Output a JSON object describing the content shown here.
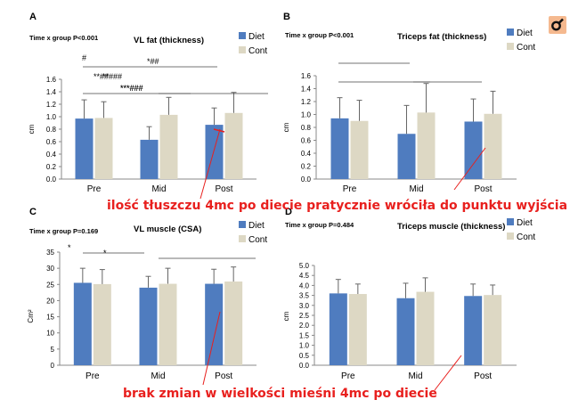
{
  "colors": {
    "diet": "#4f7cbf",
    "cont": "#ddd8c4",
    "axis": "#888888",
    "annotation": "#e8201e",
    "bracket": "#444444"
  },
  "annotations": {
    "top": "ilość tłuszczu 4mc po diecie pratycznie wróciła do punktu wyjścia",
    "bottom": "brak zmian w wielkości mieśni 4mc po diecie"
  },
  "logo_icon": "magnifier-icon",
  "chart_data": [
    {
      "type": "bar",
      "letter": "A",
      "title": "VL fat (thickness)",
      "stat": "Time x group P<0.001",
      "ylabel": "cm",
      "ylim": [
        0,
        1.6
      ],
      "yticks": [
        "0.0",
        "0.2",
        "0.4",
        "0.6",
        "0.8",
        "1.0",
        "1.2",
        "1.4",
        "1.6"
      ],
      "grid": false,
      "categories": [
        "Pre",
        "Mid",
        "Post"
      ],
      "legend": [
        "Diet",
        "Cont"
      ],
      "legend_position": "top-right",
      "series": [
        {
          "name": "Diet",
          "values": [
            0.97,
            0.63,
            0.87
          ],
          "errors": [
            0.3,
            0.21,
            0.27
          ]
        },
        {
          "name": "Cont",
          "values": [
            0.98,
            1.03,
            1.06
          ],
          "errors": [
            0.26,
            0.28,
            0.33
          ]
        }
      ],
      "brackets": [
        {
          "label": "*##",
          "from": "Pre",
          "to": "Post"
        },
        {
          "label": "***###",
          "from": "Pre",
          "to": "Mid"
        },
        {
          "label": "***###",
          "from": "Mid",
          "to": "Post"
        }
      ]
    },
    {
      "type": "bar",
      "letter": "B",
      "title": "Triceps fat (thickness)",
      "stat": "Time x group P<0.001",
      "ylabel": "cm",
      "ylim": [
        0,
        1.6
      ],
      "yticks": [
        "0.0",
        "0.2",
        "0.4",
        "0.6",
        "0.8",
        "1.0",
        "1.2",
        "1.4",
        "1.6"
      ],
      "grid": false,
      "categories": [
        "Pre",
        "Mid",
        "Post"
      ],
      "legend": [
        "Diet",
        "Cont"
      ],
      "legend_position": "top-right",
      "series": [
        {
          "name": "Diet",
          "values": [
            0.94,
            0.7,
            0.89
          ],
          "errors": [
            0.32,
            0.44,
            0.35
          ]
        },
        {
          "name": "Cont",
          "values": [
            0.9,
            1.03,
            1.01
          ],
          "errors": [
            0.32,
            0.45,
            0.35
          ]
        }
      ],
      "brackets": [
        {
          "label": "#",
          "from": "Pre",
          "to": "Post"
        },
        {
          "label": "**###",
          "from": "Pre",
          "to": "Mid"
        },
        {
          "label": "**##",
          "from": "Mid",
          "to": "Post"
        }
      ]
    },
    {
      "type": "bar",
      "letter": "C",
      "title": "VL muscle (CSA)",
      "stat": "Time x group P=0.169",
      "ylabel": "Cm²",
      "ylim": [
        0,
        35
      ],
      "yticks": [
        "0",
        "5",
        "10",
        "15",
        "20",
        "25",
        "30",
        "35"
      ],
      "grid": false,
      "categories": [
        "Pre",
        "Mid",
        "Post"
      ],
      "legend": [
        "Diet",
        "Cont"
      ],
      "legend_position": "top-right",
      "series": [
        {
          "name": "Diet",
          "values": [
            25.5,
            24.0,
            25.2
          ],
          "errors": [
            4.5,
            3.5,
            4.5
          ]
        },
        {
          "name": "Cont",
          "values": [
            25.1,
            25.2,
            25.9
          ],
          "errors": [
            4.5,
            4.8,
            4.5
          ]
        }
      ],
      "brackets": [
        {
          "label": "*",
          "from": "Pre",
          "to": "Mid"
        },
        {
          "label": "*",
          "from": "Mid",
          "to": "Post"
        }
      ]
    },
    {
      "type": "bar",
      "letter": "D",
      "title": "Triceps muscle (thickness)",
      "stat": "Time x group P=0.484",
      "ylabel": "cm",
      "ylim": [
        0,
        5.0
      ],
      "yticks": [
        "0.0",
        "0.5",
        "1.0",
        "1.5",
        "2.0",
        "2.5",
        "3.0",
        "3.5",
        "4.0",
        "4.5",
        "5.0"
      ],
      "grid": false,
      "categories": [
        "Pre",
        "Mid",
        "Post"
      ],
      "legend": [
        "Diet",
        "Cont"
      ],
      "legend_position": "top-right",
      "series": [
        {
          "name": "Diet",
          "values": [
            3.6,
            3.36,
            3.47
          ],
          "errors": [
            0.7,
            0.75,
            0.6
          ]
        },
        {
          "name": "Cont",
          "values": [
            3.57,
            3.68,
            3.52
          ],
          "errors": [
            0.5,
            0.7,
            0.5
          ]
        }
      ],
      "brackets": []
    }
  ]
}
